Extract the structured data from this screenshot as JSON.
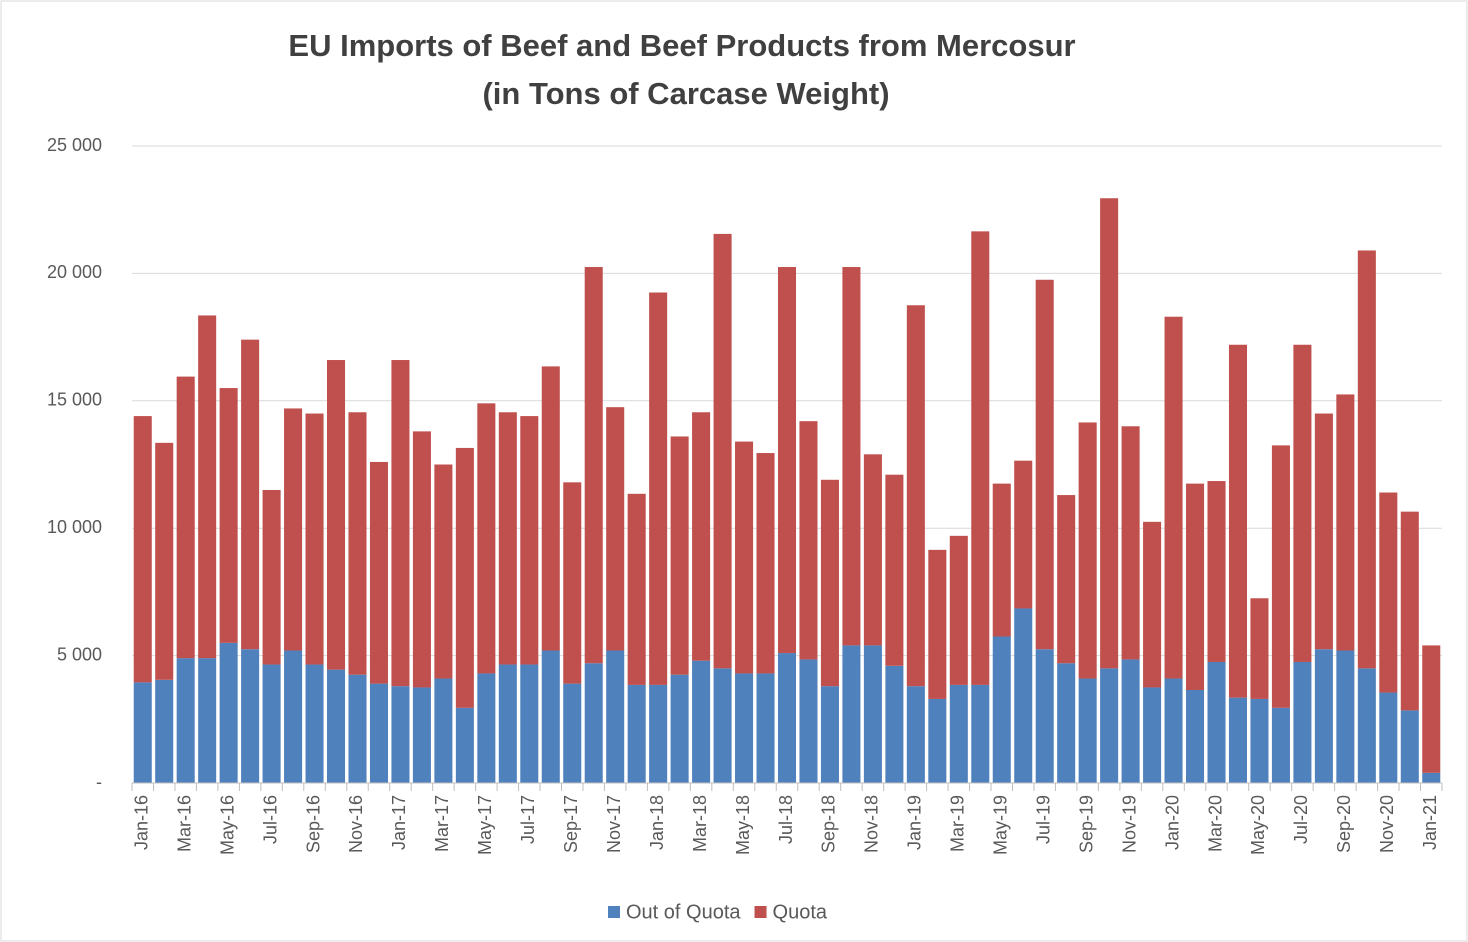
{
  "chart_data": {
    "type": "stacked-bar",
    "title": "EU Imports of Beef and Beef Products from Mercosur",
    "subtitle": "(in Tons of Carcase Weight)",
    "categories": [
      "Jan-16",
      null,
      "Mar-16",
      null,
      "May-16",
      null,
      "Jul-16",
      null,
      "Sep-16",
      null,
      "Nov-16",
      null,
      "Jan-17",
      null,
      "Mar-17",
      null,
      "May-17",
      null,
      "Jul-17",
      null,
      "Sep-17",
      null,
      "Nov-17",
      null,
      "Jan-18",
      null,
      "Mar-18",
      null,
      "May-18",
      null,
      "Jul-18",
      null,
      "Sep-18",
      null,
      "Nov-18",
      null,
      "Jan-19",
      null,
      "Mar-19",
      null,
      "May-19",
      null,
      "Jul-19",
      null,
      "Sep-19",
      null,
      "Nov-19",
      null,
      "Jan-20",
      null,
      "Mar-20",
      null,
      "May-20",
      null,
      "Jul-20",
      null,
      "Sep-20",
      null,
      "Nov-20",
      null,
      "Jan-21"
    ],
    "series": [
      {
        "name": "Out of Quota",
        "color": "#4f81bd",
        "values": [
          3950,
          4050,
          4900,
          4900,
          5500,
          5250,
          4650,
          5200,
          4650,
          4450,
          4250,
          3900,
          3800,
          3750,
          4100,
          2950,
          4300,
          4650,
          4650,
          5200,
          3900,
          4700,
          5200,
          3850,
          3850,
          4250,
          4800,
          4500,
          4300,
          4300,
          5100,
          4850,
          3800,
          5400,
          5400,
          4600,
          3800,
          3300,
          3850,
          3850,
          5750,
          6850,
          5250,
          4700,
          4100,
          4500,
          4850,
          3750,
          4100,
          3650,
          4750,
          3350,
          3300,
          2950,
          4750,
          5250,
          5200,
          4500,
          3550,
          2850,
          400
        ]
      },
      {
        "name": "Quota",
        "color": "#c0504d",
        "values": [
          10450,
          9300,
          11050,
          13450,
          10000,
          12150,
          6850,
          9500,
          9850,
          12150,
          10300,
          8700,
          12800,
          10050,
          8400,
          10200,
          10600,
          9900,
          9750,
          11150,
          7900,
          15550,
          9550,
          7500,
          15400,
          9350,
          9750,
          17050,
          9100,
          8650,
          15150,
          9350,
          8100,
          14850,
          7500,
          7500,
          14950,
          5850,
          5850,
          17800,
          6000,
          5800,
          14500,
          6600,
          10050,
          18450,
          9150,
          6500,
          14200,
          8100,
          7100,
          13850,
          3950,
          10300,
          12450,
          9250,
          10050,
          16400,
          7850,
          7800,
          5000
        ]
      }
    ],
    "ylim": [
      0,
      25000
    ],
    "yticks": [
      {
        "value": 0,
        "label": "-"
      },
      {
        "value": 5000,
        "label": "5 000"
      },
      {
        "value": 10000,
        "label": "10 000"
      },
      {
        "value": 15000,
        "label": "15 000"
      },
      {
        "value": 20000,
        "label": "20 000"
      },
      {
        "value": 25000,
        "label": "25 000"
      }
    ],
    "grid": true,
    "legend": "bottom"
  }
}
